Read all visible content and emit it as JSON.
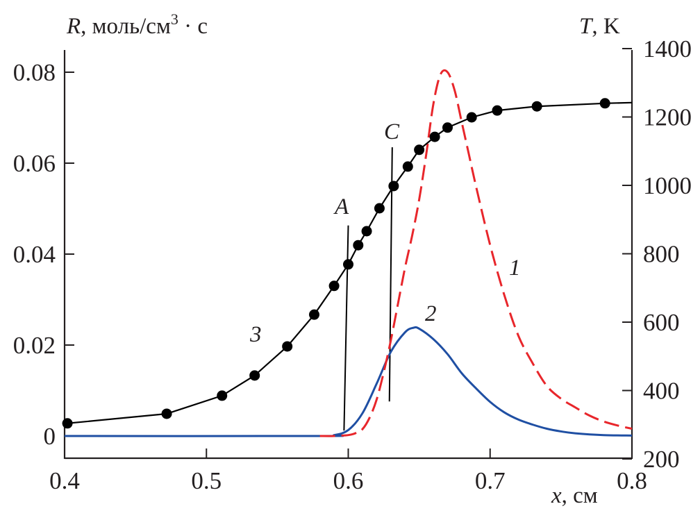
{
  "chart_data": {
    "type": "line",
    "left_axis_label": {
      "var": "R",
      "unit": ", моль/см",
      "exp": "3",
      "tail": " · с"
    },
    "right_axis_label": {
      "var": "T",
      "unit": ", K"
    },
    "x_axis_label": {
      "var": "x",
      "unit": ", см"
    },
    "xlim": [
      0.4,
      0.8
    ],
    "ylim_left": [
      -0.005,
      0.085
    ],
    "ylim_right": [
      200,
      1400
    ],
    "x_ticks": [
      "0.4",
      "0.5",
      "0.6",
      "0.7",
      "0.8"
    ],
    "y_left_ticks": [
      "0",
      "0.02",
      "0.04",
      "0.06",
      "0.08"
    ],
    "y_right_ticks": [
      "200",
      "400",
      "600",
      "800",
      "1000",
      "1200",
      "1400"
    ],
    "grid": false,
    "colors": {
      "series1": "#e8262b",
      "series2": "#1f4fa3",
      "series3": "#000000",
      "axis": "#231f20"
    },
    "series": [
      {
        "label": "1",
        "axis": "left",
        "style": "dashed",
        "x": [
          0.58,
          0.59,
          0.6,
          0.605,
          0.61,
          0.615,
          0.62,
          0.625,
          0.63,
          0.635,
          0.64,
          0.645,
          0.65,
          0.655,
          0.66,
          0.665,
          0.67,
          0.675,
          0.68,
          0.685,
          0.69,
          0.7,
          0.71,
          0.72,
          0.73,
          0.74,
          0.75,
          0.76,
          0.77,
          0.78,
          0.79,
          0.8
        ],
        "y": [
          0,
          0,
          0.0002,
          0.0006,
          0.0015,
          0.004,
          0.008,
          0.014,
          0.021,
          0.029,
          0.037,
          0.044,
          0.052,
          0.062,
          0.073,
          0.0795,
          0.08,
          0.076,
          0.069,
          0.062,
          0.055,
          0.042,
          0.031,
          0.022,
          0.016,
          0.011,
          0.0082,
          0.0063,
          0.0045,
          0.0032,
          0.0023,
          0.0016
        ]
      },
      {
        "label": "2",
        "axis": "left",
        "style": "solid",
        "x": [
          0.4,
          0.58,
          0.59,
          0.6,
          0.61,
          0.62,
          0.63,
          0.64,
          0.646,
          0.65,
          0.66,
          0.67,
          0.68,
          0.69,
          0.7,
          0.71,
          0.72,
          0.73,
          0.74,
          0.75,
          0.76,
          0.78,
          0.8
        ],
        "y": [
          0,
          0,
          0.0002,
          0.0013,
          0.005,
          0.0115,
          0.0185,
          0.0228,
          0.0238,
          0.0236,
          0.0213,
          0.018,
          0.0138,
          0.0105,
          0.0075,
          0.0052,
          0.0036,
          0.0025,
          0.0016,
          0.001,
          0.0006,
          0.0002,
          0.0001
        ]
      },
      {
        "label": "3",
        "axis": "right",
        "style": "solid-markers",
        "x": [
          0.402,
          0.472,
          0.511,
          0.534,
          0.557,
          0.576,
          0.59,
          0.6,
          0.607,
          0.613,
          0.622,
          0.632,
          0.642,
          0.65,
          0.661,
          0.67,
          0.687,
          0.705,
          0.733,
          0.781
        ],
        "y": [
          304,
          332,
          385,
          444,
          529,
          622,
          706,
          769,
          825,
          866,
          933,
          998,
          1055,
          1104,
          1142,
          1169,
          1199,
          1219,
          1231,
          1240
        ],
        "line_end": {
          "x": 0.8,
          "y": 1242
        }
      }
    ],
    "markers": [
      {
        "label": "A",
        "x_top": 0.6,
        "x_bottom": 0.597,
        "y_top": 0.0463,
        "y_bottom": 0.0012
      },
      {
        "label": "C",
        "x_top": 0.631,
        "x_bottom": 0.629,
        "y_top": 0.0635,
        "y_bottom": 0.0076
      }
    ]
  }
}
